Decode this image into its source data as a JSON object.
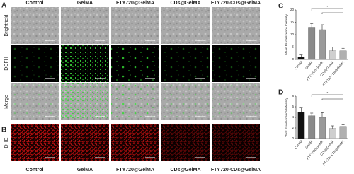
{
  "figure": {
    "panels": [
      "A",
      "B",
      "C",
      "D"
    ],
    "columns": [
      "Control",
      "GelMA",
      "FTY720@GelMA",
      "CDs@GelMA",
      "FTY720-CDs@GelMA"
    ],
    "rows": [
      "Brightfield",
      "DCFH",
      "Merge",
      "DHE"
    ],
    "bottom_labels": [
      "Control",
      "GelMA",
      "FTY720@GelMA",
      "CDs@GelMA",
      "FTY720-CDs@GelMA"
    ]
  },
  "chart_data": [
    {
      "type": "bar",
      "y_label": "Mean Fluorescence Intensity",
      "categories": [
        "Control",
        "GelMA",
        "FTY720@GelMA",
        "CDs@GelMA",
        "FTY720-CDs@GelMA"
      ],
      "values": [
        1,
        13,
        12,
        3.5,
        3.5
      ],
      "errors": [
        0.8,
        1.5,
        2,
        1.5,
        1
      ],
      "colors": [
        "#111111",
        "#8a8a8a",
        "#9a9a9a",
        "#cfcfcf",
        "#b0b0b0"
      ],
      "ylim": [
        0,
        20
      ],
      "yticks": [
        0,
        5,
        10,
        15,
        20
      ],
      "significance": "*"
    },
    {
      "type": "bar",
      "y_label": "DHE Fluorescence Intensity",
      "categories": [
        "Control",
        "GelMA",
        "FTY720@GelMA",
        "CDs@GelMA",
        "FTY720-CDs@GelMA"
      ],
      "values": [
        5,
        4.3,
        4,
        1.9,
        2.3
      ],
      "errors": [
        0.9,
        0.5,
        0.9,
        0.5,
        0.3
      ],
      "colors": [
        "#111111",
        "#8a8a8a",
        "#9a9a9a",
        "#cfcfcf",
        "#b0b0b0"
      ],
      "ylim": [
        0,
        8
      ],
      "yticks": [
        0,
        2,
        4,
        6,
        8
      ],
      "significance": "*"
    }
  ]
}
